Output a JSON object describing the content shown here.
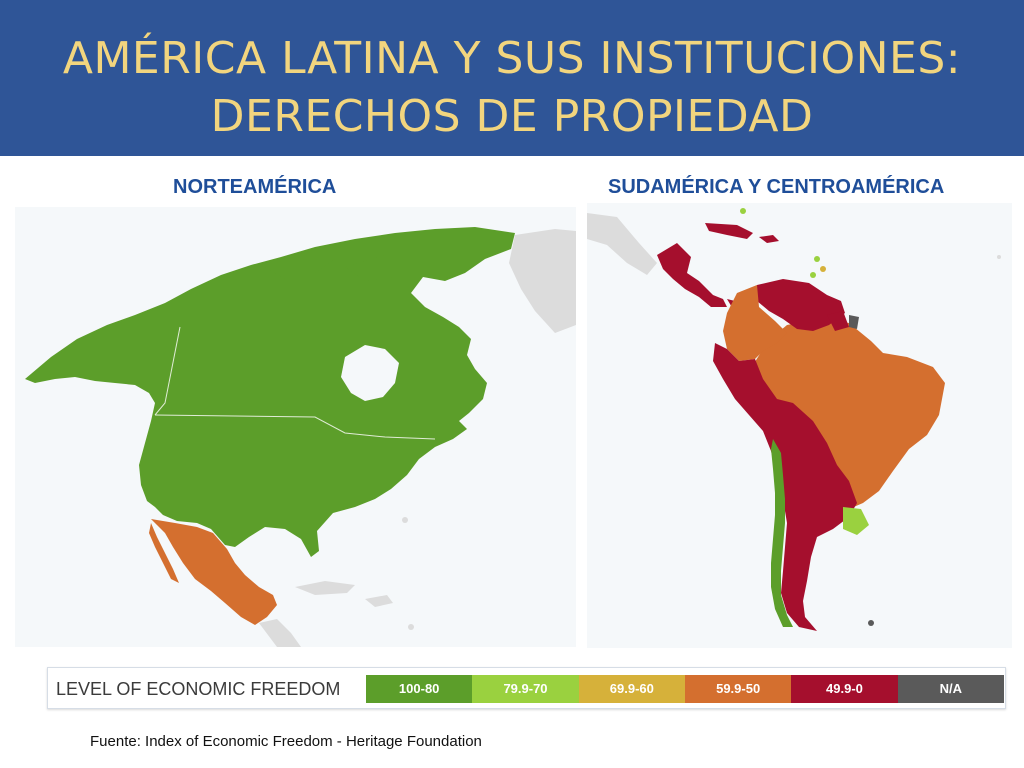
{
  "header": {
    "title_line1": "AMÉRICA LATINA Y SUS INSTITUCIONES:",
    "title_line2": "DERECHOS DE PROPIEDAD"
  },
  "maps": {
    "north": {
      "label": "NORTEAMÉRICA"
    },
    "south": {
      "label": "SUDAMÉRICA Y CENTROAMÉRICA"
    }
  },
  "legend": {
    "title": "LEVEL OF ECONOMIC FREEDOM",
    "items": [
      {
        "label": "100-80",
        "color": "#5c9e2a"
      },
      {
        "label": "79.9-70",
        "color": "#9ad13f"
      },
      {
        "label": "69.9-60",
        "color": "#d6b13a"
      },
      {
        "label": "59.9-50",
        "color": "#d46f2f"
      },
      {
        "label": "49.9-0",
        "color": "#a50f2d"
      },
      {
        "label": "N/A",
        "color": "#5a5a5a"
      }
    ]
  },
  "source": "Fuente: Index of Economic Freedom - Heritage Foundation",
  "colors": {
    "header_bg": "#2f5597",
    "header_text": "#f2d57e",
    "region_label": "#1f4e99",
    "map_bg": "#f5f8fa",
    "no_data_land": "#dcdcdc"
  }
}
